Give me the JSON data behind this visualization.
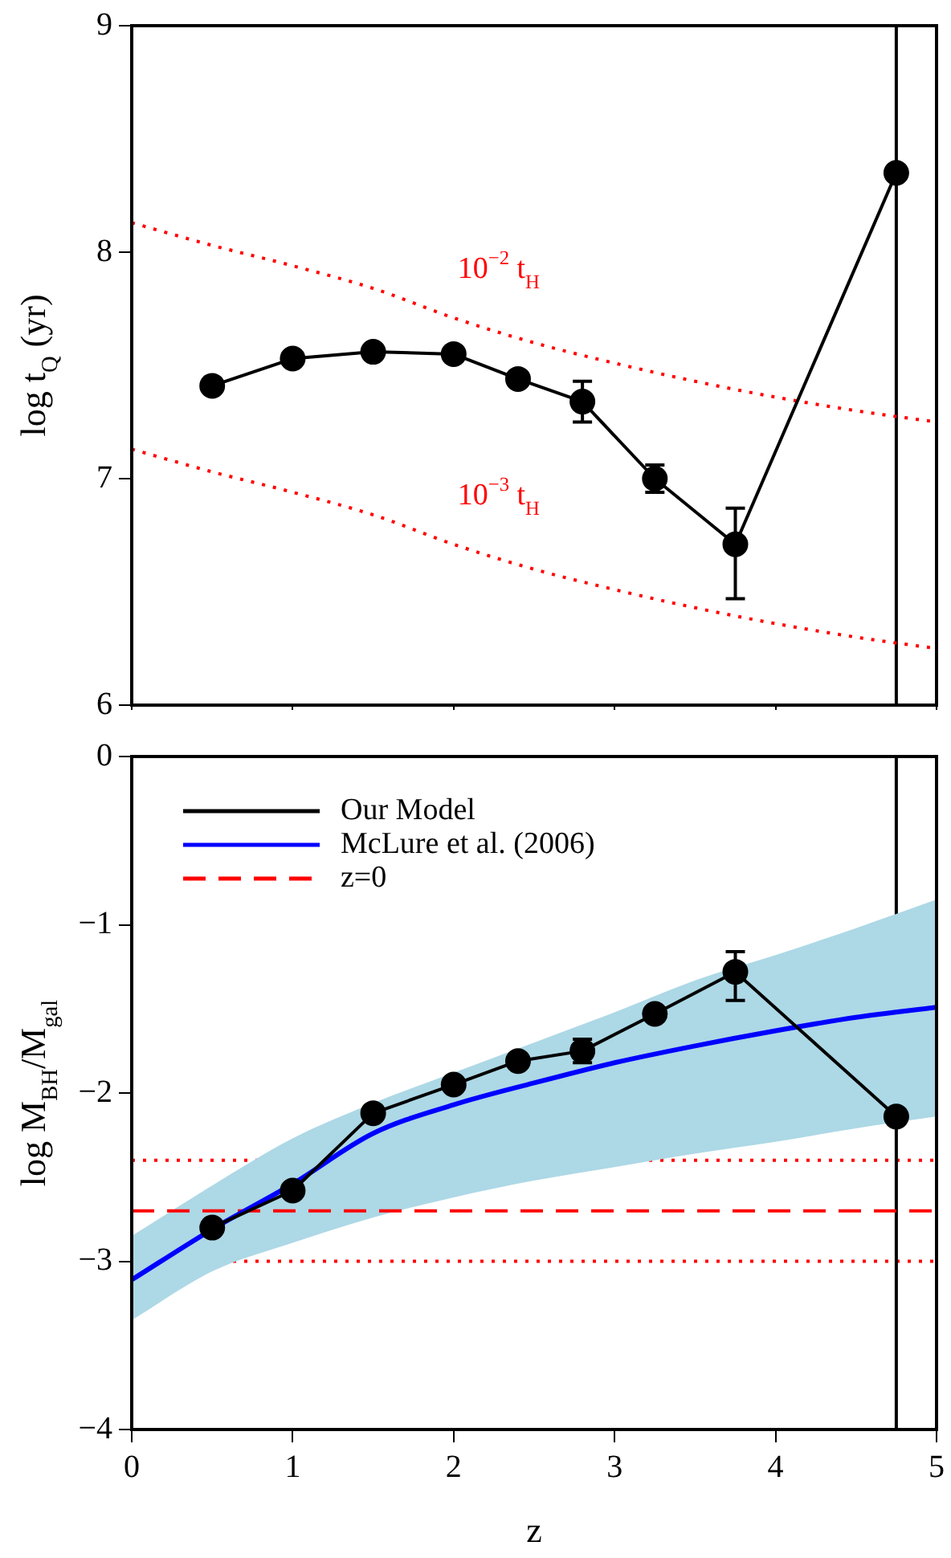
{
  "chart_data": [
    {
      "type": "line",
      "ylabel": "log t$_{Q}$ (yr)",
      "xlim": [
        0,
        5
      ],
      "xticks": [
        0,
        1,
        2,
        3,
        4,
        5
      ],
      "ylim": [
        6,
        9
      ],
      "yticks": [
        6,
        7,
        8,
        9
      ],
      "tick_labels": "y",
      "grid": false,
      "legend": false,
      "x": [
        0.5,
        1,
        1.5,
        2,
        2.4,
        2.8,
        3.25,
        3.75,
        4.75
      ],
      "series": [
        {
          "color": "#000000",
          "marker": "circle",
          "line_style": "solid",
          "values": [
            7.41,
            7.53,
            7.56,
            7.55,
            7.44,
            7.34,
            7.0,
            6.71,
            8.35
          ],
          "errors": [
            null,
            null,
            null,
            null,
            null,
            0.09,
            0.06,
            [
              6.47,
              6.87
            ],
            null
          ]
        },
        {
          "color": "#ff0000",
          "marker": "none",
          "line_style": "dotted",
          "x": [
            0,
            0.5,
            1,
            1.5,
            2,
            2.5,
            3,
            3.5,
            4,
            4.5,
            5
          ],
          "values": [
            8.13,
            8.03,
            7.94,
            7.84,
            7.71,
            7.6,
            7.51,
            7.43,
            7.36,
            7.3,
            7.25
          ]
        },
        {
          "color": "#ff0000",
          "marker": "none",
          "line_style": "dotted",
          "x": [
            0,
            0.5,
            1,
            1.5,
            2,
            2.5,
            3,
            3.5,
            4,
            4.5,
            5
          ],
          "values": [
            7.13,
            7.03,
            6.94,
            6.84,
            6.71,
            6.6,
            6.51,
            6.43,
            6.36,
            6.3,
            6.25
          ]
        }
      ],
      "ref_lines": [
        {
          "axis": "x",
          "value": 4.75,
          "color": "#000000",
          "line_style": "solid"
        }
      ],
      "annotations": [
        "10$^{−2}$ t$_{H}$",
        "10$^{−3}$ t$_{H}$"
      ]
    },
    {
      "type": "line",
      "xlabel": "z",
      "ylabel": "log M$_{BH}$/M$_{gal}$",
      "xlim": [
        0,
        5
      ],
      "xticks": [
        0,
        1,
        2,
        3,
        4,
        5
      ],
      "ylim": [
        -4,
        0
      ],
      "yticks": [
        -4,
        -3,
        -2,
        -1,
        0
      ],
      "grid": false,
      "legend": "top left",
      "x": [
        0.5,
        1,
        1.5,
        2,
        2.4,
        2.8,
        3.25,
        3.75,
        4.75
      ],
      "series": [
        {
          "name": "Our Model",
          "color": "#000000",
          "marker": "circle",
          "line_style": "solid",
          "values": [
            -2.8,
            -2.58,
            -2.12,
            -1.95,
            -1.81,
            -1.75,
            -1.53,
            -1.28,
            -2.14
          ],
          "errors": [
            null,
            null,
            null,
            null,
            null,
            0.07,
            0.03,
            [
              -1.45,
              -1.16
            ],
            null
          ]
        },
        {
          "name": "McLure et al. (2006)",
          "color": "#0000ff",
          "marker": "none",
          "line_style": "solid",
          "x": [
            0,
            0.5,
            1,
            1.5,
            2,
            2.5,
            3,
            3.5,
            4,
            4.5,
            5
          ],
          "values": [
            -3.11,
            -2.81,
            -2.54,
            -2.24,
            -2.07,
            -1.94,
            -1.82,
            -1.72,
            -1.63,
            -1.55,
            -1.49
          ],
          "lower": [
            -3.35,
            -3.06,
            -2.89,
            -2.74,
            -2.62,
            -2.52,
            -2.44,
            -2.36,
            -2.29,
            -2.21,
            -2.14
          ],
          "upper": [
            -2.85,
            -2.55,
            -2.27,
            -2.06,
            -1.88,
            -1.7,
            -1.52,
            -1.33,
            -1.18,
            -1.02,
            -0.85
          ]
        },
        {
          "name": "z=0",
          "color": "#ff0000",
          "marker": "none",
          "line_style": "dashed",
          "x": [
            0,
            5
          ],
          "values": [
            -2.7,
            -2.7
          ]
        }
      ],
      "ref_lines": [
        {
          "axis": "y",
          "value": -2.4,
          "color": "#ff0000",
          "line_style": "dotted"
        },
        {
          "axis": "y",
          "value": -3.0,
          "color": "#ff0000",
          "line_style": "dotted"
        },
        {
          "axis": "x",
          "value": 4.75,
          "color": "#000000",
          "line_style": "solid"
        }
      ]
    }
  ]
}
